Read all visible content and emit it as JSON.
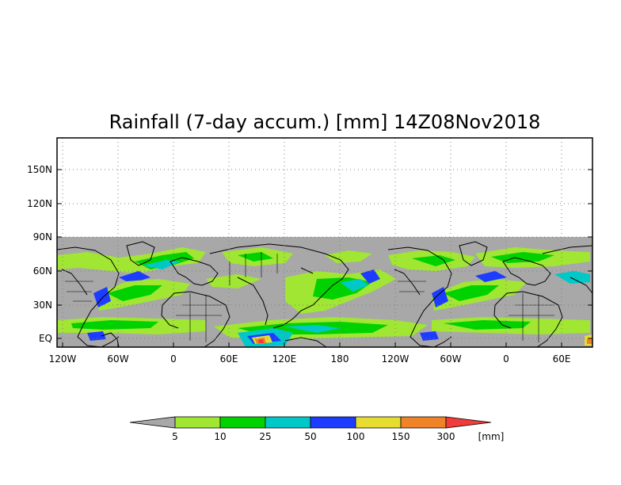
{
  "title": "Rainfall (7-day accum.) [mm] 14Z08Nov2018",
  "map": {
    "y_ticks": [
      "150N",
      "120N",
      "90N",
      "60N",
      "30N",
      "EQ"
    ],
    "x_ticks": [
      "120W",
      "60W",
      "0",
      "60E",
      "120E",
      "180",
      "120W",
      "60W",
      "0",
      "60E"
    ],
    "colors": {
      "no_data": "#a8a8a8",
      "land_outline": "#000000",
      "grid": "#808080"
    }
  },
  "colorbar": {
    "unit": "[mm]",
    "labels": [
      "5",
      "10",
      "25",
      "50",
      "100",
      "150",
      "300"
    ],
    "colors": [
      "#a8a8a8",
      "#a0e632",
      "#00d200",
      "#00c8c8",
      "#1e3cff",
      "#e6dc32",
      "#f08228",
      "#f03c3c"
    ]
  }
}
